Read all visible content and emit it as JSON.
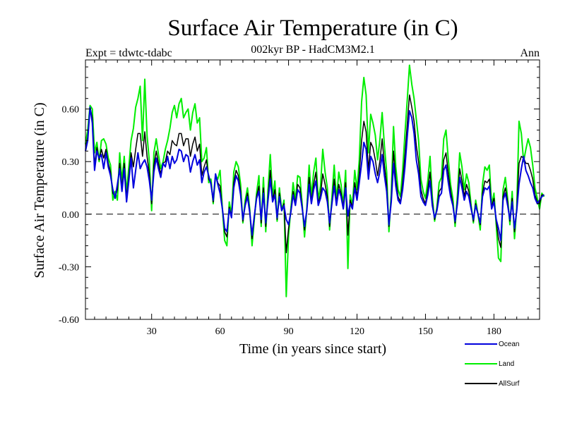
{
  "chart_data": {
    "type": "line",
    "title": "Surface Air Temperature (in C)",
    "subtitle": "002kyr BP - HadCM3M2.1",
    "experiment": "Expt = tdwtc-tdabc",
    "period": "Ann",
    "xlabel": "Time (in years since start)",
    "ylabel": "Surface Air Temperature (in C)",
    "xlim": [
      1,
      200
    ],
    "ylim": [
      -0.6,
      0.88
    ],
    "xticks": [
      30,
      60,
      90,
      120,
      150,
      180
    ],
    "xtick_labels": [
      "30",
      "60",
      "90",
      "120",
      "150",
      "180"
    ],
    "yticks": [
      -0.6,
      -0.3,
      0.0,
      0.3,
      0.6
    ],
    "ytick_labels": [
      "-0.60",
      "-0.30",
      "0.00",
      "0.30",
      "0.60"
    ],
    "reference_line": 0.0,
    "legend_position": "bottom-right",
    "series": [
      {
        "name": "Ocean",
        "color": "#0000dd",
        "values": [
          0.36,
          0.42,
          0.61,
          0.52,
          0.25,
          0.36,
          0.32,
          0.34,
          0.26,
          0.35,
          0.27,
          0.22,
          0.14,
          0.09,
          0.17,
          0.26,
          0.13,
          0.26,
          0.07,
          0.19,
          0.32,
          0.15,
          0.25,
          0.35,
          0.26,
          0.29,
          0.31,
          0.27,
          0.19,
          0.08,
          0.24,
          0.32,
          0.26,
          0.21,
          0.29,
          0.27,
          0.33,
          0.26,
          0.33,
          0.29,
          0.31,
          0.37,
          0.36,
          0.3,
          0.34,
          0.33,
          0.24,
          0.3,
          0.34,
          0.28,
          0.31,
          0.18,
          0.24,
          0.27,
          0.22,
          0.17,
          0.08,
          0.23,
          0.17,
          0.12,
          0.03,
          -0.08,
          -0.1,
          0.03,
          -0.02,
          0.15,
          0.22,
          0.19,
          0.11,
          -0.03,
          0.05,
          0.1,
          0.01,
          -0.12,
          -0.01,
          0.09,
          0.13,
          -0.03,
          0.12,
          -0.05,
          0.08,
          0.2,
          0.07,
          0.11,
          -0.02,
          0.1,
          0.02,
          0.05,
          -0.03,
          -0.06,
          0.01,
          0.11,
          0.05,
          0.14,
          0.12,
          0.03,
          -0.07,
          0.02,
          0.17,
          0.06,
          0.14,
          0.19,
          0.05,
          0.09,
          0.15,
          0.13,
          0.07,
          -0.05,
          0.06,
          0.16,
          0.05,
          0.14,
          0.1,
          0.03,
          0.15,
          -0.01,
          0.06,
          0.03,
          0.15,
          0.08,
          0.18,
          0.29,
          0.41,
          0.37,
          0.2,
          0.33,
          0.3,
          0.23,
          0.18,
          0.24,
          0.34,
          0.22,
          0.13,
          -0.06,
          0.07,
          0.29,
          0.16,
          0.08,
          0.06,
          0.14,
          0.27,
          0.44,
          0.59,
          0.55,
          0.46,
          0.31,
          0.23,
          0.1,
          0.07,
          0.05,
          0.11,
          0.19,
          0.05,
          -0.02,
          0.02,
          0.1,
          0.12,
          0.25,
          0.28,
          0.18,
          0.1,
          0.05,
          -0.04,
          0.06,
          0.21,
          0.15,
          0.08,
          0.13,
          0.1,
          0.03,
          -0.03,
          0.05,
          0.0,
          -0.05,
          0.1,
          0.15,
          0.14,
          0.16,
          0.03,
          0.07,
          -0.03,
          -0.08,
          -0.15,
          0.08,
          0.12,
          0.05,
          -0.03,
          0.07,
          -0.08,
          0.02,
          0.17,
          0.26,
          0.33,
          0.25,
          0.22,
          0.18,
          0.15,
          0.09,
          0.06,
          0.08,
          0.1,
          0.11
        ]
      },
      {
        "name": "Land",
        "color": "#00ee00",
        "values": [
          0.4,
          0.48,
          0.62,
          0.6,
          0.35,
          0.41,
          0.3,
          0.42,
          0.43,
          0.4,
          0.32,
          0.28,
          0.08,
          0.13,
          0.08,
          0.35,
          0.19,
          0.33,
          0.12,
          0.27,
          0.42,
          0.49,
          0.61,
          0.66,
          0.73,
          0.42,
          0.77,
          0.45,
          0.3,
          0.02,
          0.35,
          0.43,
          0.34,
          0.26,
          0.3,
          0.37,
          0.42,
          0.49,
          0.58,
          0.62,
          0.55,
          0.63,
          0.66,
          0.55,
          0.58,
          0.6,
          0.48,
          0.58,
          0.63,
          0.52,
          0.55,
          0.3,
          0.32,
          0.38,
          0.18,
          0.2,
          0.06,
          0.22,
          0.2,
          0.25,
          0.03,
          -0.15,
          -0.18,
          0.07,
          0.0,
          0.24,
          0.3,
          0.27,
          0.17,
          -0.05,
          0.08,
          0.15,
          0.03,
          -0.18,
          -0.03,
          0.12,
          0.22,
          -0.07,
          0.21,
          -0.1,
          0.14,
          0.34,
          0.1,
          0.19,
          -0.04,
          0.15,
          0.02,
          0.08,
          -0.47,
          -0.12,
          0.03,
          0.18,
          0.08,
          0.22,
          0.21,
          0.05,
          -0.13,
          0.03,
          0.28,
          0.1,
          0.24,
          0.32,
          0.08,
          0.16,
          0.37,
          0.24,
          0.15,
          -0.09,
          0.1,
          0.28,
          0.08,
          0.24,
          0.17,
          0.05,
          0.25,
          -0.31,
          0.11,
          0.05,
          0.25,
          0.14,
          0.31,
          0.64,
          0.78,
          0.68,
          0.35,
          0.57,
          0.52,
          0.45,
          0.31,
          0.42,
          0.58,
          0.39,
          0.24,
          -0.1,
          0.12,
          0.5,
          0.27,
          0.14,
          0.1,
          0.25,
          0.46,
          0.65,
          0.85,
          0.74,
          0.66,
          0.54,
          0.42,
          0.2,
          0.13,
          0.09,
          0.19,
          0.33,
          0.1,
          -0.04,
          0.04,
          0.18,
          0.21,
          0.43,
          0.48,
          0.31,
          0.17,
          0.09,
          -0.07,
          0.11,
          0.35,
          0.27,
          0.14,
          0.23,
          0.18,
          0.05,
          -0.05,
          0.08,
          0.0,
          -0.09,
          0.17,
          0.27,
          0.25,
          0.28,
          0.05,
          0.12,
          -0.06,
          -0.25,
          -0.27,
          0.14,
          0.21,
          0.09,
          -0.06,
          0.13,
          -0.14,
          0.04,
          0.53,
          0.46,
          0.3,
          0.37,
          0.43,
          0.38,
          0.28,
          0.15,
          0.09,
          0.03,
          0.12,
          0.1
        ]
      },
      {
        "name": "AllSurf",
        "color": "#000000",
        "values": [
          0.37,
          0.44,
          0.61,
          0.55,
          0.28,
          0.38,
          0.31,
          0.37,
          0.32,
          0.37,
          0.29,
          0.24,
          0.12,
          0.1,
          0.14,
          0.29,
          0.15,
          0.29,
          0.09,
          0.22,
          0.35,
          0.27,
          0.37,
          0.46,
          0.46,
          0.33,
          0.47,
          0.33,
          0.23,
          0.06,
          0.28,
          0.36,
          0.29,
          0.23,
          0.29,
          0.3,
          0.36,
          0.34,
          0.42,
          0.4,
          0.39,
          0.46,
          0.46,
          0.39,
          0.43,
          0.43,
          0.33,
          0.4,
          0.44,
          0.36,
          0.4,
          0.22,
          0.27,
          0.31,
          0.2,
          0.18,
          0.07,
          0.23,
          0.18,
          0.16,
          0.03,
          -0.1,
          -0.13,
          0.04,
          -0.01,
          0.18,
          0.25,
          0.22,
          0.13,
          -0.04,
          0.06,
          0.12,
          0.02,
          -0.14,
          -0.02,
          0.1,
          0.16,
          -0.05,
          0.15,
          -0.07,
          0.1,
          0.25,
          0.08,
          0.14,
          -0.03,
          0.12,
          0.02,
          0.06,
          -0.22,
          -0.08,
          0.02,
          0.13,
          0.06,
          0.17,
          0.15,
          0.04,
          -0.09,
          0.02,
          0.21,
          0.07,
          0.17,
          0.24,
          0.06,
          0.11,
          0.23,
          0.17,
          0.1,
          -0.07,
          0.07,
          0.2,
          0.06,
          0.17,
          0.12,
          0.04,
          0.18,
          -0.12,
          0.08,
          0.04,
          0.18,
          0.1,
          0.23,
          0.42,
          0.53,
          0.47,
          0.25,
          0.41,
          0.38,
          0.31,
          0.22,
          0.3,
          0.43,
          0.28,
          0.17,
          -0.07,
          0.09,
          0.36,
          0.2,
          0.1,
          0.07,
          0.18,
          0.34,
          0.51,
          0.68,
          0.61,
          0.53,
          0.39,
          0.3,
          0.14,
          0.09,
          0.06,
          0.14,
          0.24,
          0.07,
          -0.03,
          0.03,
          0.13,
          0.15,
          0.31,
          0.35,
          0.23,
          0.13,
          0.06,
          -0.05,
          0.08,
          0.26,
          0.19,
          0.1,
          0.17,
          0.13,
          0.04,
          -0.04,
          0.06,
          0.0,
          -0.06,
          0.12,
          0.19,
          0.18,
          0.2,
          0.04,
          0.09,
          -0.04,
          -0.14,
          -0.19,
          0.1,
          0.15,
          0.07,
          -0.04,
          0.09,
          -0.1,
          0.03,
          0.29,
          0.33,
          0.32,
          0.29,
          0.29,
          0.25,
          0.2,
          0.11,
          0.07,
          0.06,
          0.11,
          0.11
        ]
      }
    ]
  }
}
